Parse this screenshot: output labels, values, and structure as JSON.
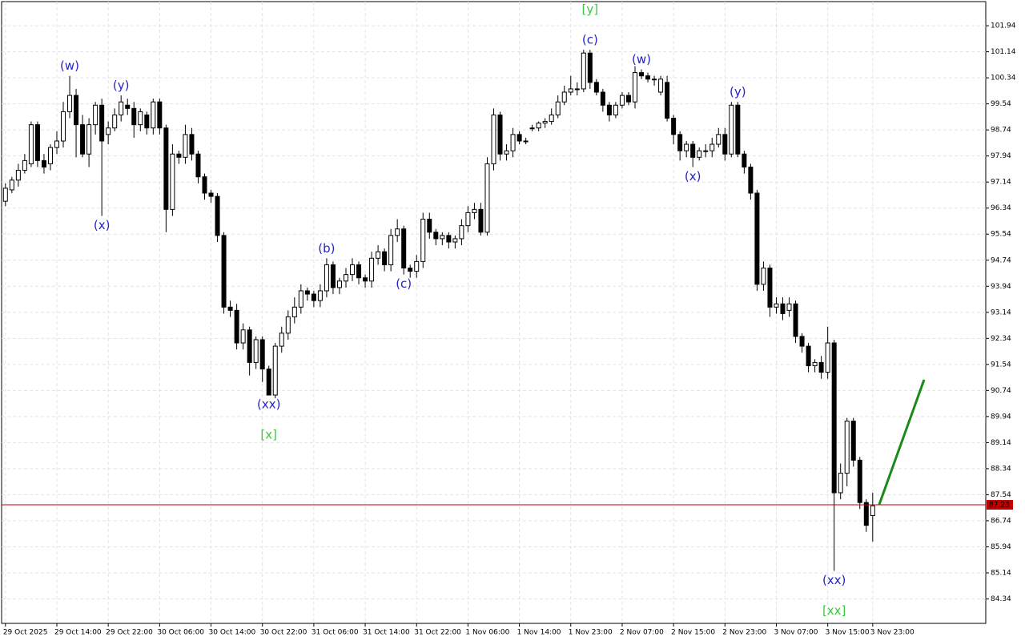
{
  "chart_data": {
    "type": "candlestick",
    "categories": [
      "29 Oct 2025",
      null,
      null,
      null,
      null,
      null,
      null,
      null,
      "29 Oct 14:00",
      null,
      null,
      null,
      null,
      null,
      null,
      null,
      "29 Oct 22:00",
      null,
      null,
      null,
      null,
      null,
      null,
      null,
      "30 Oct 06:00",
      null,
      null,
      null,
      null,
      null,
      null,
      null,
      "30 Oct 14:00",
      null,
      null,
      null,
      null,
      null,
      null,
      null,
      "30 Oct 22:00",
      null,
      null,
      null,
      null,
      null,
      null,
      null,
      "31 Oct 06:00",
      null,
      null,
      null,
      null,
      null,
      null,
      null,
      "31 Oct 14:00",
      null,
      null,
      null,
      null,
      null,
      null,
      null,
      "31 Oct 22:00",
      null,
      null,
      null,
      null,
      null,
      null,
      null,
      "1 Nov 06:00",
      null,
      null,
      null,
      null,
      null,
      null,
      null,
      "1 Nov 14:00",
      null,
      null,
      null,
      null,
      null,
      null,
      null,
      "1 Nov 23:00",
      null,
      null,
      null,
      null,
      null,
      null,
      null,
      "2 Nov 07:00",
      null,
      null,
      null,
      null,
      null,
      null,
      null,
      "2 Nov 15:00",
      null,
      null,
      null,
      null,
      null,
      null,
      null,
      "2 Nov 23:00",
      null,
      null,
      null,
      null,
      null,
      null,
      null,
      "3 Nov 07:00",
      null,
      null,
      null,
      null,
      null,
      null,
      null,
      "3 Nov 15:00",
      null,
      null,
      null,
      null,
      null,
      null,
      "3 Nov 23:00"
    ],
    "open": [
      96.55,
      96.9,
      97.2,
      97.5,
      97.7,
      98.9,
      97.8,
      97.7,
      98.2,
      98.4,
      99.3,
      99.8,
      98.9,
      98.0,
      98.9,
      99.5,
      98.6,
      98.8,
      99.2,
      99.5,
      99.4,
      98.9,
      99.2,
      98.8,
      99.6,
      98.8,
      96.3,
      98.0,
      97.9,
      98.6,
      98.0,
      97.3,
      96.8,
      96.7,
      95.5,
      93.3,
      93.2,
      92.2,
      92.6,
      91.6,
      92.3,
      91.4,
      90.6,
      92.1,
      92.5,
      93.0,
      93.3,
      93.8,
      93.7,
      93.5,
      93.8,
      94.6,
      93.9,
      94.1,
      94.3,
      94.6,
      94.2,
      94.1,
      94.8,
      95.0,
      94.6,
      95.5,
      95.7,
      94.5,
      94.4,
      94.7,
      96.0,
      95.6,
      95.4,
      95.5,
      95.3,
      95.4,
      95.8,
      96.2,
      96.3,
      95.6,
      97.7,
      99.2,
      98.0,
      98.1,
      98.6,
      98.4,
      98.8,
      98.8,
      98.95,
      99.0,
      99.2,
      99.6,
      99.9,
      100.0,
      100.0,
      101.1,
      100.2,
      99.9,
      99.5,
      99.2,
      99.5,
      99.8,
      99.6,
      100.5,
      100.4,
      100.3,
      99.9,
      100.2,
      99.1,
      98.6,
      98.1,
      98.3,
      97.9,
      98.1,
      98.1,
      98.3,
      98.6,
      98.0,
      99.5,
      98.0,
      97.6,
      96.8,
      94.0,
      94.5,
      93.3,
      93.4,
      93.2,
      93.4,
      92.4,
      92.1,
      91.5,
      91.6,
      91.3,
      92.2,
      87.6,
      88.2,
      89.8,
      88.6,
      87.3,
      86.9
    ],
    "high": [
      97.1,
      97.3,
      97.7,
      98.0,
      99.0,
      99.0,
      98.0,
      98.3,
      98.7,
      99.6,
      100.4,
      100.0,
      99.2,
      99.1,
      99.6,
      99.7,
      99.0,
      99.4,
      99.8,
      99.7,
      99.6,
      99.4,
      99.3,
      99.7,
      99.7,
      98.9,
      98.3,
      98.1,
      98.9,
      98.8,
      98.1,
      97.4,
      96.9,
      96.8,
      95.6,
      93.5,
      93.4,
      92.8,
      92.7,
      92.4,
      92.4,
      91.5,
      92.2,
      92.7,
      93.2,
      93.6,
      94.0,
      93.9,
      93.8,
      94.0,
      94.8,
      94.7,
      94.2,
      94.5,
      94.8,
      94.7,
      94.3,
      95.0,
      95.2,
      95.1,
      95.7,
      96.0,
      95.8,
      94.6,
      94.9,
      96.2,
      96.2,
      95.7,
      95.6,
      95.6,
      95.5,
      96.0,
      96.4,
      96.5,
      96.5,
      97.9,
      99.4,
      99.3,
      98.3,
      98.8,
      98.7,
      98.5,
      98.9,
      99.0,
      99.1,
      99.4,
      99.8,
      100.1,
      100.4,
      100.2,
      101.2,
      101.2,
      100.3,
      100.0,
      99.6,
      99.6,
      99.9,
      99.9,
      100.7,
      100.6,
      100.5,
      100.4,
      100.4,
      100.4,
      99.2,
      98.7,
      98.4,
      98.4,
      98.2,
      98.3,
      98.5,
      98.8,
      98.8,
      99.6,
      99.6,
      98.1,
      97.7,
      96.9,
      94.7,
      94.6,
      93.6,
      93.6,
      93.6,
      93.5,
      92.5,
      92.2,
      91.7,
      91.8,
      92.7,
      92.3,
      88.5,
      89.9,
      89.9,
      88.7,
      87.4,
      87.6
    ],
    "low": [
      96.4,
      96.8,
      97.0,
      97.4,
      97.6,
      97.6,
      97.4,
      97.5,
      98.0,
      98.2,
      99.1,
      97.9,
      97.9,
      97.6,
      98.6,
      96.1,
      98.3,
      98.7,
      99.0,
      99.2,
      98.5,
      98.7,
      98.6,
      98.6,
      98.6,
      95.6,
      96.1,
      97.7,
      97.7,
      97.8,
      97.1,
      96.6,
      96.5,
      95.3,
      93.1,
      93.0,
      92.0,
      92.0,
      91.2,
      91.4,
      91.0,
      90.6,
      90.5,
      91.9,
      92.3,
      92.8,
      93.1,
      93.5,
      93.3,
      93.3,
      93.6,
      93.7,
      93.7,
      93.9,
      94.1,
      94.0,
      93.9,
      93.9,
      94.6,
      94.4,
      94.4,
      95.3,
      94.3,
      94.2,
      94.2,
      94.5,
      95.4,
      95.2,
      95.2,
      95.1,
      95.1,
      95.2,
      95.6,
      96.0,
      95.5,
      95.5,
      97.5,
      97.8,
      97.8,
      97.9,
      98.3,
      98.3,
      98.7,
      98.7,
      98.8,
      98.9,
      99.1,
      99.5,
      99.8,
      99.8,
      99.9,
      100.0,
      99.8,
      99.3,
      99.0,
      99.1,
      99.4,
      99.5,
      99.4,
      100.3,
      100.2,
      100.1,
      99.8,
      99.0,
      98.3,
      97.8,
      97.9,
      97.6,
      97.8,
      97.9,
      97.9,
      98.2,
      97.8,
      97.9,
      97.9,
      97.4,
      96.6,
      93.8,
      93.8,
      93.0,
      93.1,
      92.9,
      93.0,
      92.2,
      91.9,
      91.3,
      91.3,
      91.1,
      91.1,
      85.2,
      87.4,
      87.8,
      88.4,
      87.1,
      86.4,
      86.1
    ],
    "close": [
      96.95,
      97.2,
      97.5,
      97.8,
      98.9,
      97.8,
      97.6,
      98.2,
      98.4,
      99.3,
      99.8,
      98.9,
      98.0,
      98.9,
      99.5,
      98.4,
      98.8,
      99.2,
      99.6,
      99.4,
      98.9,
      99.3,
      98.8,
      99.6,
      98.8,
      96.3,
      98.0,
      97.9,
      98.6,
      98.0,
      97.3,
      96.8,
      96.7,
      95.5,
      93.3,
      93.2,
      92.2,
      92.6,
      91.6,
      92.3,
      91.4,
      90.6,
      92.1,
      92.5,
      93.0,
      93.3,
      93.8,
      93.7,
      93.5,
      93.8,
      94.6,
      93.9,
      94.1,
      94.3,
      94.6,
      94.2,
      94.1,
      94.8,
      95.0,
      94.6,
      95.5,
      95.7,
      94.5,
      94.4,
      94.7,
      96.0,
      95.6,
      95.4,
      95.5,
      95.3,
      95.4,
      95.8,
      96.2,
      96.3,
      95.6,
      97.7,
      99.2,
      98.0,
      98.1,
      98.6,
      98.4,
      98.4,
      98.8,
      98.95,
      99.0,
      99.2,
      99.6,
      99.9,
      100.0,
      100.0,
      101.1,
      100.2,
      99.9,
      99.5,
      99.2,
      99.5,
      99.8,
      99.6,
      100.5,
      100.4,
      100.3,
      100.3,
      100.3,
      99.1,
      98.6,
      98.1,
      98.3,
      97.9,
      98.1,
      98.1,
      98.3,
      98.6,
      98.0,
      99.5,
      98.0,
      97.6,
      96.8,
      94.0,
      94.5,
      93.3,
      93.4,
      93.1,
      93.4,
      92.4,
      92.1,
      91.5,
      91.6,
      91.3,
      92.2,
      87.6,
      88.2,
      89.8,
      88.6,
      87.3,
      86.6,
      87.2
    ],
    "up_color": "#ffffff",
    "down_color": "#000000",
    "border_color": "#000000",
    "ylim": [
      83.59,
      102.68
    ],
    "xlim": [
      -0.6,
      152.6
    ],
    "yticks": [
      101.94,
      101.14,
      100.34,
      99.54,
      98.74,
      97.94,
      97.14,
      96.34,
      95.54,
      94.74,
      93.94,
      93.14,
      92.34,
      91.54,
      90.74,
      89.94,
      89.14,
      88.34,
      87.54,
      86.74,
      85.94,
      85.14,
      84.34
    ],
    "grid": true,
    "price_line": {
      "value": 87.23,
      "color": "#c00000"
    },
    "projection": {
      "x": [
        136,
        143
      ],
      "y": [
        87.23,
        91.07
      ],
      "color": "#1a8a1a"
    },
    "annotations": [
      {
        "text": "(w)",
        "index": 10,
        "position": "above",
        "color": "#2424c8"
      },
      {
        "text": "(x)",
        "index": 15,
        "position": "below",
        "color": "#2424c8"
      },
      {
        "text": "(y)",
        "index": 18,
        "position": "above",
        "color": "#2424c8"
      },
      {
        "text": "(xx)",
        "index": 41,
        "position": "below",
        "color": "#2424c8"
      },
      {
        "text": "[x]",
        "index": 41,
        "position": "below",
        "color": "#3cc83c"
      },
      {
        "text": "(b)",
        "index": 50,
        "position": "above",
        "color": "#2424c8"
      },
      {
        "text": "(c)",
        "index": 62,
        "position": "below",
        "color": "#2424c8"
      },
      {
        "text": "(c)",
        "index": 91,
        "position": "above",
        "color": "#2424c8"
      },
      {
        "text": "[y]",
        "index": 91,
        "position": "above",
        "color": "#3cc83c"
      },
      {
        "text": "(w)",
        "index": 99,
        "position": "above",
        "color": "#2424c8"
      },
      {
        "text": "(x)",
        "index": 107,
        "position": "below",
        "color": "#2424c8"
      },
      {
        "text": "(y)",
        "index": 114,
        "position": "above",
        "color": "#2424c8"
      },
      {
        "text": "(xx)",
        "index": 129,
        "position": "below",
        "color": "#2424c8"
      },
      {
        "text": "[xx]",
        "index": 129,
        "position": "below",
        "color": "#3cc83c"
      }
    ]
  }
}
